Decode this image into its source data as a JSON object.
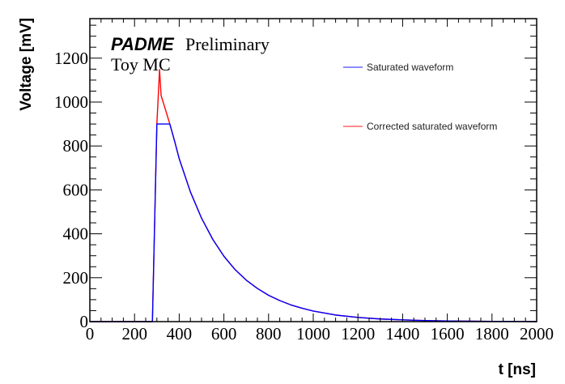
{
  "chart_data": {
    "type": "line",
    "title": "",
    "xlabel": "t [ns]",
    "ylabel": "Voltage [mV]",
    "xlim": [
      0,
      2000
    ],
    "ylim": [
      0,
      1380
    ],
    "x_ticks": [
      0,
      200,
      400,
      600,
      800,
      1000,
      1200,
      1400,
      1600,
      1800,
      2000
    ],
    "y_ticks": [
      0,
      200,
      400,
      600,
      800,
      1000,
      1200
    ],
    "x_minor_step": 50,
    "y_minor_step": 50,
    "grid": false,
    "legend_position": "top-right",
    "annotations": {
      "experiment": "PADME",
      "status": "Preliminary",
      "sample": "Toy MC"
    },
    "series": [
      {
        "name": "Corrected saturated waveform",
        "color": "#ff0000",
        "x": [
          0,
          280,
          300,
          312,
          319,
          358,
          380,
          400,
          450,
          500,
          550,
          600,
          650,
          700,
          750,
          800,
          850,
          900,
          950,
          1000,
          1100,
          1200,
          1300,
          1400,
          1500,
          1600,
          1700,
          1800,
          1900,
          2000
        ],
        "y": [
          0,
          0,
          900,
          1148,
          1030,
          900,
          820,
          742,
          591,
          471,
          375,
          298,
          237,
          189,
          151,
          120,
          96,
          76,
          61,
          48,
          30,
          19,
          12,
          8,
          5,
          3,
          2,
          1,
          1,
          0
        ]
      },
      {
        "name": "Saturated waveform",
        "color": "#0000ff",
        "x": [
          0,
          280,
          300,
          358,
          380,
          400,
          450,
          500,
          550,
          600,
          650,
          700,
          750,
          800,
          850,
          900,
          950,
          1000,
          1100,
          1200,
          1300,
          1400,
          1500,
          1600,
          1700,
          1800,
          1900,
          2000
        ],
        "y": [
          0,
          0,
          900,
          900,
          820,
          742,
          591,
          471,
          375,
          298,
          237,
          189,
          151,
          120,
          96,
          76,
          61,
          48,
          30,
          19,
          12,
          8,
          5,
          3,
          2,
          1,
          1,
          0
        ]
      }
    ],
    "legend": [
      {
        "label": "Saturated waveform",
        "color": "#0000ff"
      },
      {
        "label": "Corrected saturated waveform",
        "color": "#ff0000"
      }
    ]
  }
}
